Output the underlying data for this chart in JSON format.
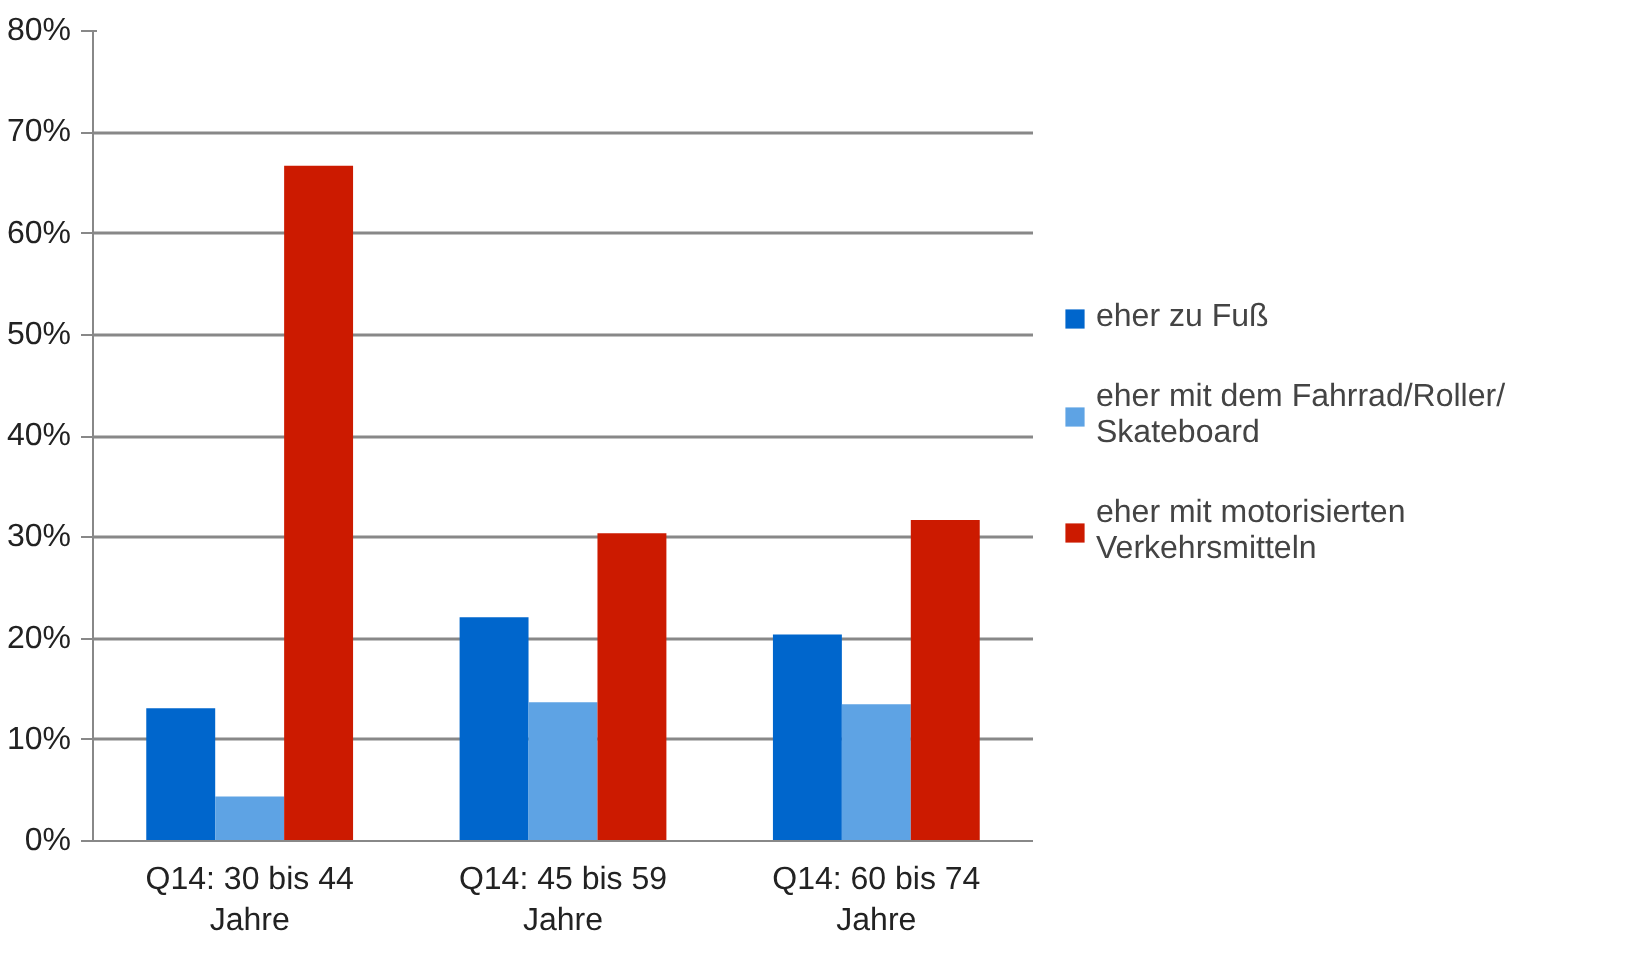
{
  "chart_data": {
    "type": "bar",
    "categories": [
      "Q14: 30 bis 44 Jahre",
      "Q14: 45 bis 59 Jahre",
      "Q14: 60 bis 74 Jahre"
    ],
    "series": [
      {
        "name": "eher zu Fuß",
        "color": "#0066cc",
        "values": [
          13.1,
          22.1,
          20.4
        ]
      },
      {
        "name": "eher mit dem Fahrrad/Roller/ Skateboard",
        "color": "#5ea3e4",
        "values": [
          4.4,
          13.7,
          13.5
        ]
      },
      {
        "name": "eher mit motorisierten Verkehrsmitteln",
        "color": "#cc1a00",
        "values": [
          66.7,
          30.4,
          31.7
        ]
      }
    ],
    "ylim": [
      0,
      80
    ],
    "yticks": [
      {
        "value": 0,
        "label": "0%"
      },
      {
        "value": 10,
        "label": "10%"
      },
      {
        "value": 20,
        "label": "20%"
      },
      {
        "value": 30,
        "label": "30%"
      },
      {
        "value": 40,
        "label": "40%"
      },
      {
        "value": 50,
        "label": "50%"
      },
      {
        "value": 60,
        "label": "60%"
      },
      {
        "value": 70,
        "label": "70%"
      },
      {
        "value": 80,
        "label": "80%"
      }
    ],
    "grid": "y",
    "legend": "right"
  }
}
